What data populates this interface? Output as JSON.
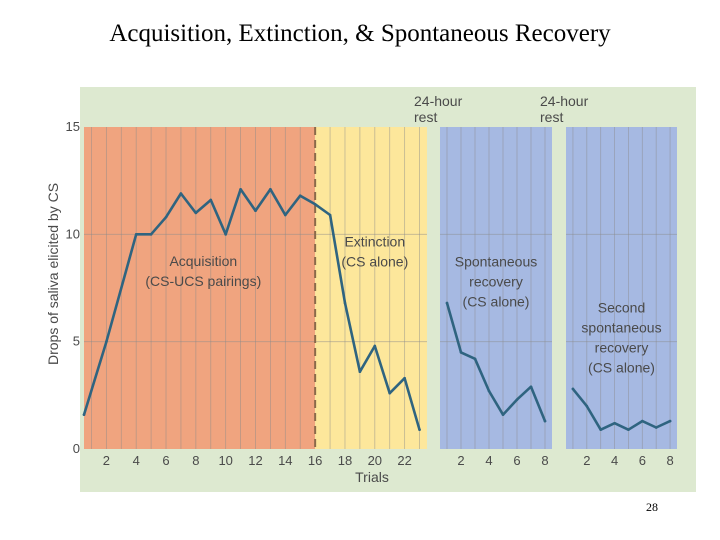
{
  "slide": {
    "title": "Acquisition, Extinction, & Spontaneous Recovery",
    "page_number": "28"
  },
  "colors": {
    "panel_bg": "#dde9d0",
    "acquisition": "#f0a47f",
    "extinction": "#fde79b",
    "recovery": "#a6b9e2",
    "line": "#2f6480",
    "grid": "#8a8a8a",
    "dashed": "#8a6a4a"
  },
  "chart_data": {
    "type": "line",
    "title": "Acquisition, Extinction, & Spontaneous Recovery",
    "xlabel": "Trials",
    "ylabel": "Drops of saliva elicited by CS",
    "ylim": [
      0,
      15
    ],
    "y_ticks": [
      "0",
      "5",
      "10",
      "15"
    ],
    "panels": [
      {
        "name": "main",
        "x_range": [
          0.5,
          23.5
        ],
        "x_ticks": [
          "2",
          "4",
          "6",
          "8",
          "10",
          "12",
          "14",
          "16",
          "18",
          "20",
          "22"
        ],
        "x_tick_values": [
          2,
          4,
          6,
          8,
          10,
          12,
          14,
          16,
          18,
          20,
          22
        ],
        "regions": [
          {
            "label_lines": [
              "Acquisition",
              "(CS-UCS pairings)"
            ],
            "from": 0.5,
            "to": 16,
            "color_key": "acquisition",
            "label_x": 8.5,
            "label_y": 8.3
          },
          {
            "label_lines": [
              "Extinction",
              "(CS alone)"
            ],
            "from": 16,
            "to": 23.5,
            "color_key": "extinction",
            "label_x": 20,
            "label_y": 9.2
          }
        ],
        "divider_x": 16,
        "x": [
          0.5,
          2,
          4,
          5,
          6,
          7,
          8,
          9,
          10,
          11,
          12,
          13,
          14,
          15,
          16,
          17,
          18,
          19,
          20,
          21,
          22,
          23
        ],
        "y": [
          1.6,
          5.0,
          10.0,
          10.0,
          10.8,
          11.9,
          11.0,
          11.6,
          10.0,
          12.1,
          11.1,
          12.1,
          10.9,
          11.8,
          11.4,
          10.9,
          6.8,
          3.6,
          4.8,
          2.6,
          3.3,
          0.9
        ]
      },
      {
        "name": "spontaneous-recovery",
        "top_label_lines": [
          "24-hour",
          "rest"
        ],
        "x_range": [
          0.5,
          8.5
        ],
        "x_ticks": [
          "2",
          "4",
          "6",
          "8"
        ],
        "x_tick_values": [
          2,
          4,
          6,
          8
        ],
        "regions": [
          {
            "label_lines": [
              "Spontaneous",
              "recovery",
              "(CS alone)"
            ],
            "from": 0.5,
            "to": 8.5,
            "color_key": "recovery",
            "label_x": 4.5,
            "label_y": 7.8
          }
        ],
        "x": [
          1,
          2,
          3,
          4,
          5,
          6,
          7,
          8
        ],
        "y": [
          6.8,
          4.5,
          4.2,
          2.7,
          1.6,
          2.3,
          2.9,
          1.3
        ]
      },
      {
        "name": "second-spontaneous-recovery",
        "top_label_lines": [
          "24-hour",
          "rest"
        ],
        "x_range": [
          0.5,
          8.5
        ],
        "x_ticks": [
          "2",
          "4",
          "6",
          "8"
        ],
        "x_tick_values": [
          2,
          4,
          6,
          8
        ],
        "regions": [
          {
            "label_lines": [
              "Second",
              "spontaneous",
              "recovery",
              "(CS alone)"
            ],
            "from": 0.5,
            "to": 8.5,
            "color_key": "recovery",
            "label_x": 4.5,
            "label_y": 5.2
          }
        ],
        "x": [
          1,
          2,
          3,
          4,
          5,
          6,
          7,
          8
        ],
        "y": [
          2.8,
          2.0,
          0.9,
          1.2,
          0.9,
          1.3,
          1.0,
          1.3
        ]
      }
    ]
  }
}
